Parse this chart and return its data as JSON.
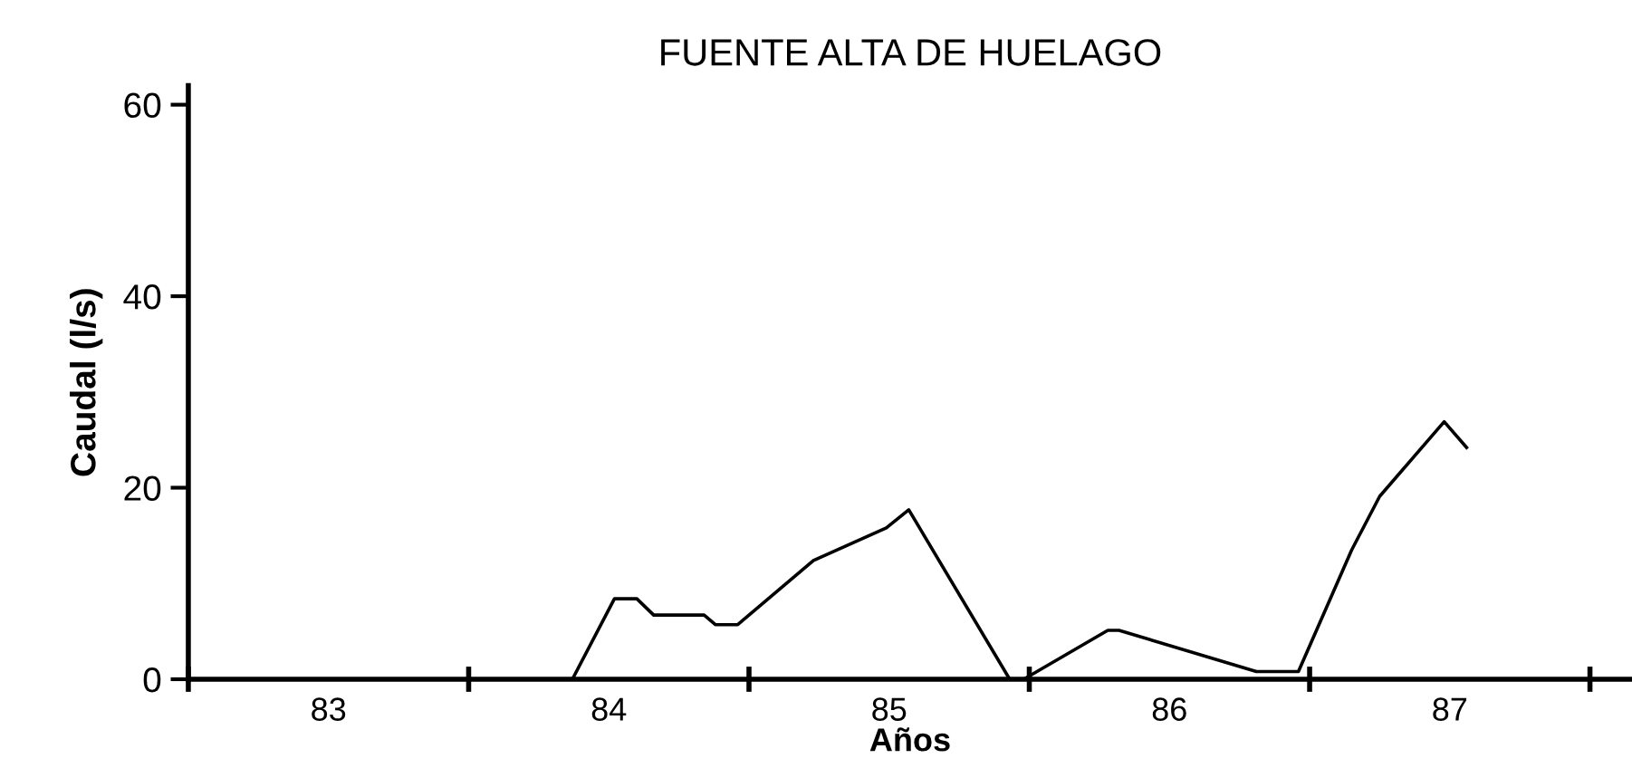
{
  "chart_data": {
    "type": "line",
    "title": "FUENTE ALTA DE HUELAGO",
    "xlabel": "Años",
    "ylabel": "Caudal (l/s)",
    "series": [
      {
        "color": "#000000",
        "x": [
          84.37,
          84.52,
          84.6,
          84.66,
          84.84,
          84.88,
          84.96,
          85.23,
          85.49,
          85.57,
          85.93,
          85.98,
          86.28,
          86.32,
          86.81,
          86.96,
          87.15,
          87.25,
          87.48,
          87.56
        ],
        "values": [
          0,
          8.4,
          8.4,
          6.7,
          6.7,
          5.7,
          5.7,
          12.4,
          15.8,
          17.7,
          0,
          0,
          5.1,
          5.1,
          0.8,
          0.8,
          13.5,
          19.1,
          26.9,
          24.2
        ]
      }
    ],
    "xlim": [
      83,
      88.15
    ],
    "ylim": [
      0,
      62
    ],
    "xticks": [
      {
        "value": 83,
        "label": null
      },
      {
        "value": 83.5,
        "label": "83"
      },
      {
        "value": 84,
        "label": null
      },
      {
        "value": 84.5,
        "label": "84"
      },
      {
        "value": 85,
        "label": null
      },
      {
        "value": 85.5,
        "label": "85"
      },
      {
        "value": 86,
        "label": null
      },
      {
        "value": 86.5,
        "label": "86"
      },
      {
        "value": 87,
        "label": null
      },
      {
        "value": 87.5,
        "label": "87"
      },
      {
        "value": 88,
        "label": null
      }
    ],
    "yticks": [
      0,
      20,
      40,
      60
    ],
    "grid": false,
    "marker": "none",
    "line_style": "solid"
  }
}
